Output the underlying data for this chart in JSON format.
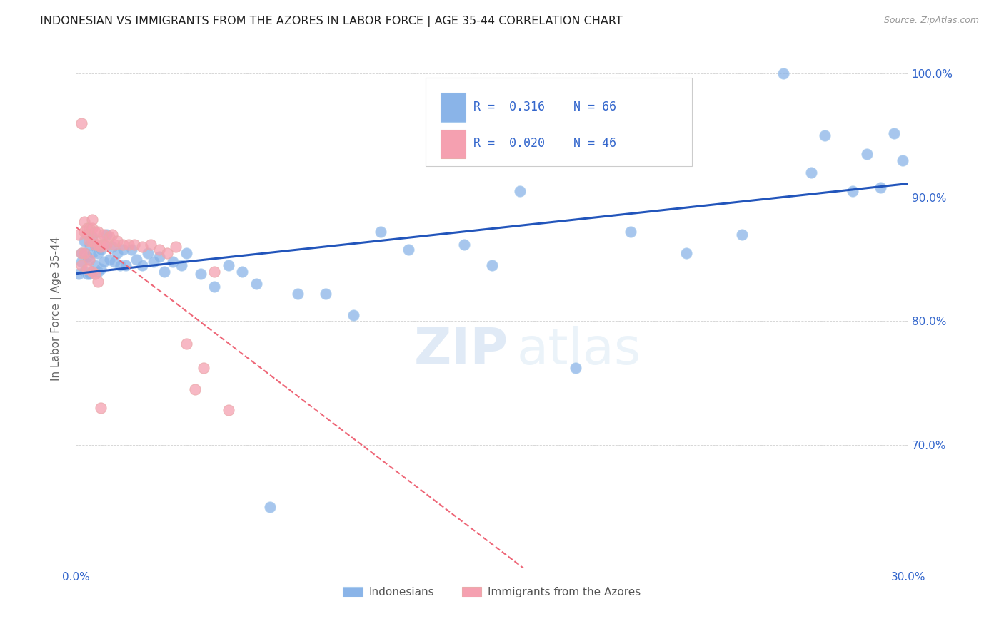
{
  "title": "INDONESIAN VS IMMIGRANTS FROM THE AZORES IN LABOR FORCE | AGE 35-44 CORRELATION CHART",
  "source": "Source: ZipAtlas.com",
  "ylabel": "In Labor Force | Age 35-44",
  "xlim": [
    0.0,
    0.3
  ],
  "ylim": [
    0.6,
    1.02
  ],
  "ytick_labels": [
    "70.0%",
    "80.0%",
    "90.0%",
    "100.0%"
  ],
  "ytick_values": [
    0.7,
    0.8,
    0.9,
    1.0
  ],
  "xtick_labels": [
    "0.0%",
    "",
    "",
    "",
    "",
    "",
    "",
    "",
    "",
    "",
    "30.0%"
  ],
  "xtick_values": [
    0.0,
    0.03,
    0.06,
    0.09,
    0.12,
    0.15,
    0.18,
    0.21,
    0.24,
    0.27,
    0.3
  ],
  "blue_color": "#8ab4e8",
  "pink_color": "#f5a0b0",
  "blue_line_color": "#2255bb",
  "pink_line_color": "#ee6677",
  "text_color": "#3366CC",
  "label_color": "#333333",
  "R_blue": "0.316",
  "N_blue": "66",
  "R_pink": "0.020",
  "N_pink": "46",
  "blue_x": [
    0.001,
    0.002,
    0.002,
    0.003,
    0.003,
    0.003,
    0.004,
    0.004,
    0.005,
    0.005,
    0.005,
    0.006,
    0.006,
    0.006,
    0.007,
    0.007,
    0.008,
    0.008,
    0.009,
    0.009,
    0.01,
    0.01,
    0.011,
    0.012,
    0.013,
    0.014,
    0.015,
    0.016,
    0.017,
    0.018,
    0.02,
    0.022,
    0.024,
    0.026,
    0.028,
    0.03,
    0.032,
    0.035,
    0.038,
    0.04,
    0.045,
    0.05,
    0.055,
    0.06,
    0.065,
    0.07,
    0.08,
    0.09,
    0.1,
    0.11,
    0.12,
    0.14,
    0.15,
    0.16,
    0.18,
    0.2,
    0.22,
    0.24,
    0.255,
    0.265,
    0.27,
    0.28,
    0.285,
    0.29,
    0.295,
    0.298
  ],
  "blue_y": [
    0.838,
    0.848,
    0.855,
    0.84,
    0.855,
    0.865,
    0.838,
    0.852,
    0.838,
    0.85,
    0.862,
    0.84,
    0.855,
    0.868,
    0.845,
    0.86,
    0.84,
    0.855,
    0.842,
    0.858,
    0.848,
    0.862,
    0.87,
    0.85,
    0.86,
    0.848,
    0.855,
    0.845,
    0.858,
    0.845,
    0.858,
    0.85,
    0.845,
    0.855,
    0.848,
    0.852,
    0.84,
    0.848,
    0.845,
    0.855,
    0.838,
    0.828,
    0.845,
    0.84,
    0.83,
    0.65,
    0.822,
    0.822,
    0.805,
    0.872,
    0.858,
    0.862,
    0.845,
    0.905,
    0.762,
    0.872,
    0.855,
    0.87,
    1.0,
    0.92,
    0.95,
    0.905,
    0.935,
    0.908,
    0.952,
    0.93
  ],
  "pink_x": [
    0.001,
    0.002,
    0.002,
    0.003,
    0.003,
    0.004,
    0.004,
    0.005,
    0.005,
    0.006,
    0.006,
    0.006,
    0.007,
    0.007,
    0.008,
    0.008,
    0.009,
    0.009,
    0.01,
    0.01,
    0.011,
    0.012,
    0.013,
    0.014,
    0.015,
    0.017,
    0.019,
    0.021,
    0.024,
    0.027,
    0.03,
    0.033,
    0.036,
    0.04,
    0.043,
    0.046,
    0.002,
    0.003,
    0.004,
    0.005,
    0.006,
    0.007,
    0.008,
    0.009,
    0.05,
    0.055
  ],
  "pink_y": [
    0.87,
    0.96,
    0.855,
    0.872,
    0.88,
    0.875,
    0.87,
    0.865,
    0.875,
    0.865,
    0.875,
    0.882,
    0.862,
    0.872,
    0.862,
    0.872,
    0.86,
    0.865,
    0.87,
    0.862,
    0.862,
    0.868,
    0.87,
    0.862,
    0.865,
    0.862,
    0.862,
    0.862,
    0.86,
    0.862,
    0.858,
    0.855,
    0.86,
    0.782,
    0.745,
    0.762,
    0.845,
    0.855,
    0.842,
    0.85,
    0.84,
    0.838,
    0.832,
    0.73,
    0.84,
    0.728
  ]
}
